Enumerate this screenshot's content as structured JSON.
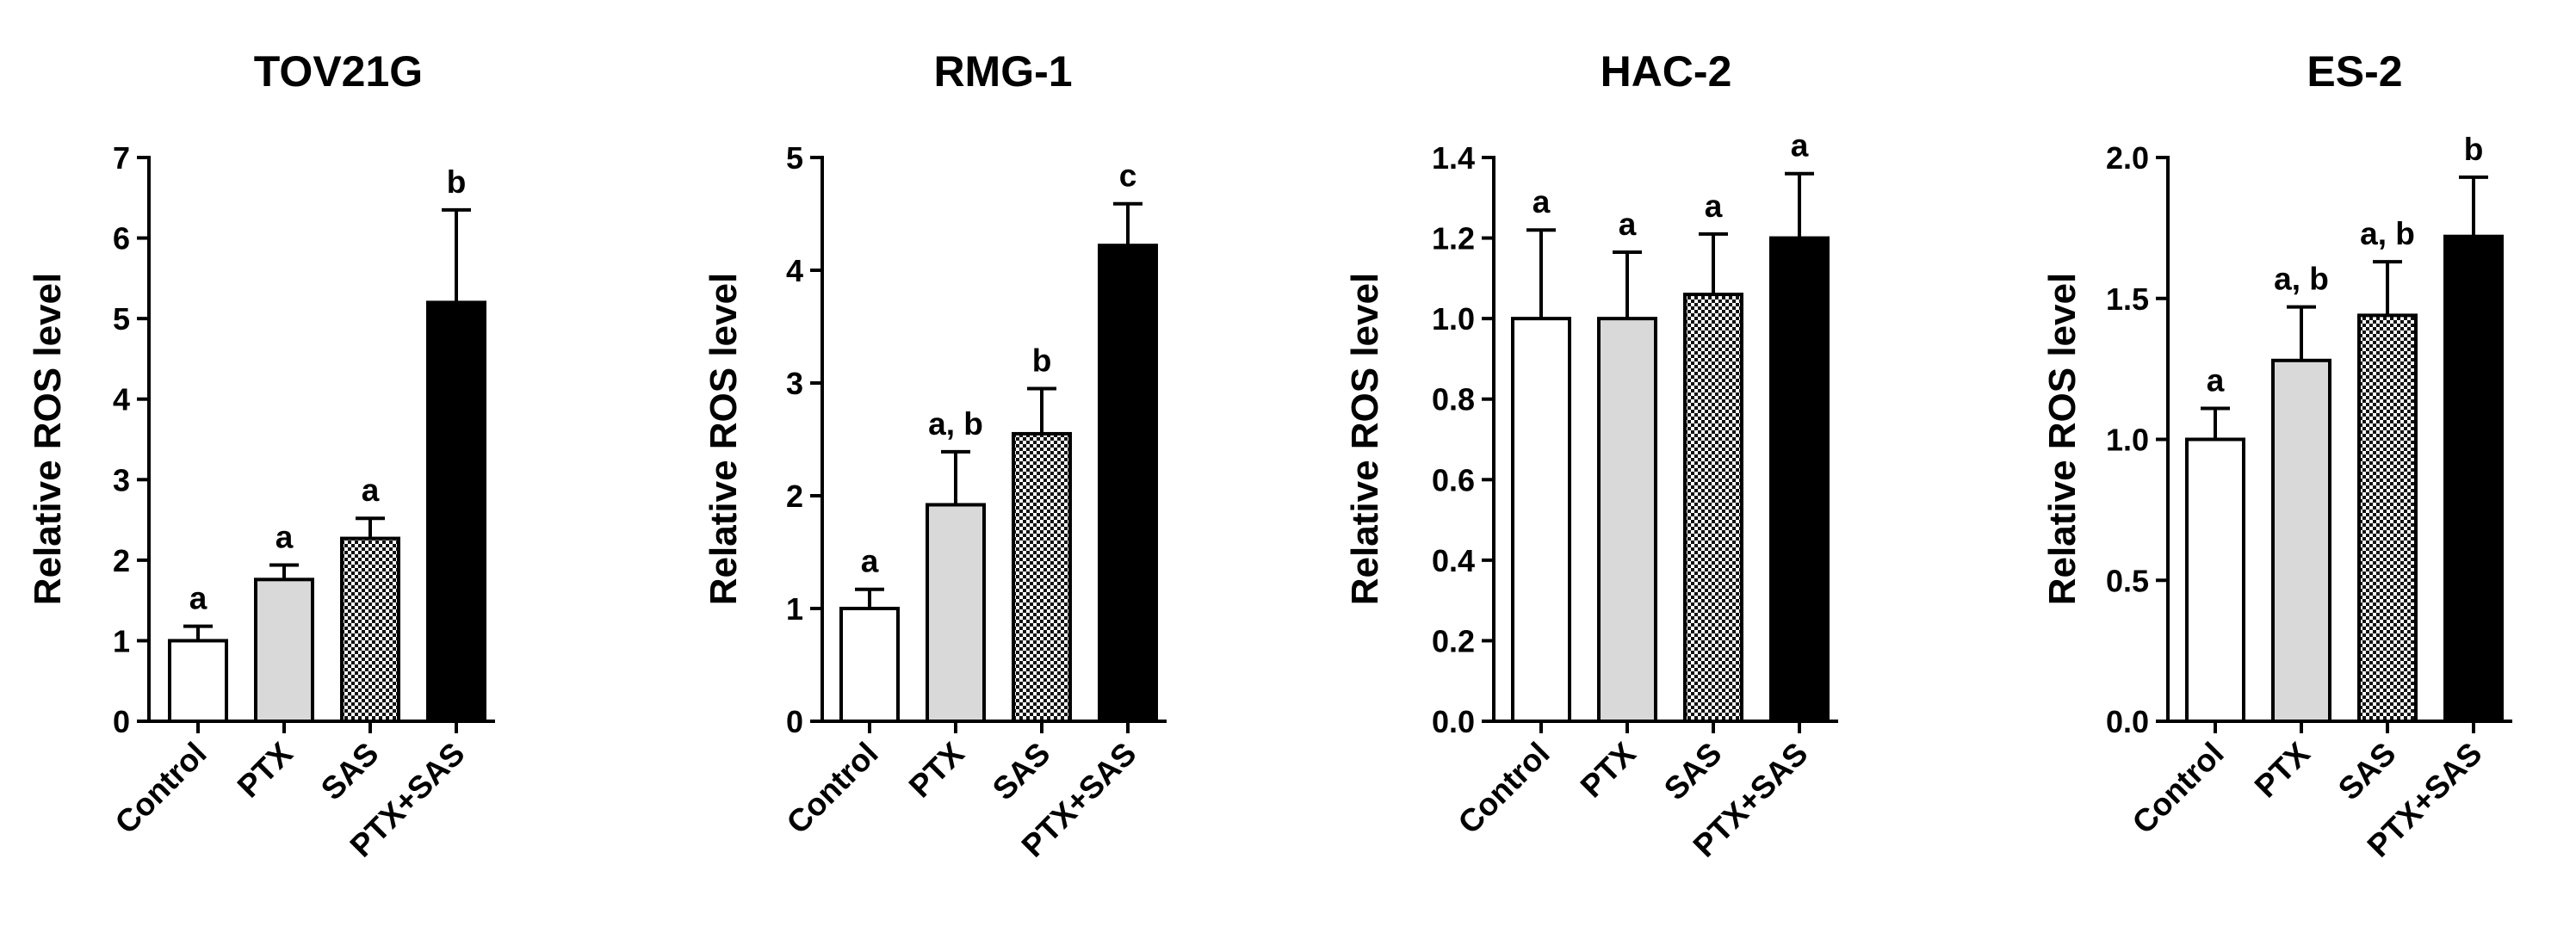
{
  "chart_data": [
    {
      "type": "bar",
      "title": "TOV21G",
      "ylabel": "Relative ROS level",
      "xlabel": "",
      "categories": [
        "Control",
        "PTX",
        "SAS",
        "PTX+SAS"
      ],
      "values": [
        1.0,
        1.76,
        2.27,
        5.2
      ],
      "errors": [
        0.18,
        0.18,
        0.25,
        1.15
      ],
      "significance": [
        "a",
        "a",
        "a",
        "b"
      ],
      "ylim": [
        0,
        7
      ],
      "yticks": [
        "0",
        "1",
        "2",
        "3",
        "4",
        "5",
        "6",
        "7"
      ],
      "ytick_values": [
        0,
        1,
        2,
        3,
        4,
        5,
        6,
        7
      ]
    },
    {
      "type": "bar",
      "title": "RMG-1",
      "ylabel": "Relative ROS level",
      "xlabel": "",
      "categories": [
        "Control",
        "PTX",
        "SAS",
        "PTX+SAS"
      ],
      "values": [
        1.0,
        1.92,
        2.55,
        4.22
      ],
      "errors": [
        0.17,
        0.47,
        0.4,
        0.37
      ],
      "significance": [
        "a",
        "a, b",
        "b",
        "c"
      ],
      "ylim": [
        0,
        5
      ],
      "yticks": [
        "0",
        "1",
        "2",
        "3",
        "4",
        "5"
      ],
      "ytick_values": [
        0,
        1,
        2,
        3,
        4,
        5
      ]
    },
    {
      "type": "bar",
      "title": "HAC-2",
      "ylabel": "Relative ROS level",
      "xlabel": "",
      "categories": [
        "Control",
        "PTX",
        "SAS",
        "PTX+SAS"
      ],
      "values": [
        1.0,
        1.0,
        1.06,
        1.2
      ],
      "errors": [
        0.22,
        0.165,
        0.15,
        0.16
      ],
      "significance": [
        "a",
        "a",
        "a",
        "a"
      ],
      "ylim": [
        0,
        1.4
      ],
      "yticks": [
        "0.0",
        "0.2",
        "0.4",
        "0.6",
        "0.8",
        "1.0",
        "1.2",
        "1.4"
      ],
      "ytick_values": [
        0,
        0.2,
        0.4,
        0.6,
        0.8,
        1.0,
        1.2,
        1.4
      ]
    },
    {
      "type": "bar",
      "title": "ES-2",
      "ylabel": "Relative ROS level",
      "xlabel": "",
      "categories": [
        "Control",
        "PTX",
        "SAS",
        "PTX+SAS"
      ],
      "values": [
        1.0,
        1.28,
        1.44,
        1.72
      ],
      "errors": [
        0.11,
        0.19,
        0.19,
        0.21
      ],
      "significance": [
        "a",
        "a, b",
        "a, b",
        "b"
      ],
      "ylim": [
        0,
        2.0
      ],
      "yticks": [
        "0.0",
        "0.5",
        "1.0",
        "1.5",
        "2.0"
      ],
      "ytick_values": [
        0,
        0.5,
        1.0,
        1.5,
        2.0
      ]
    }
  ],
  "fills": [
    "#ffffff",
    "#d9d9d9",
    "checker",
    "#000000"
  ],
  "colors": {
    "axis": "#000000",
    "bar_edge": "#000000",
    "checker_dark": "#111111",
    "checker_light": "#ffffff"
  }
}
